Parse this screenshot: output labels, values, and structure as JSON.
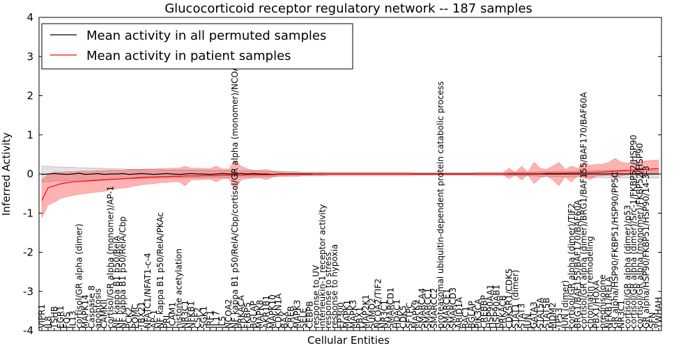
{
  "chart_data": {
    "type": "line",
    "title": "Glucocorticoid receptor regulatory network -- 187 samples",
    "xlabel": "Cellular Entities",
    "ylabel": "Inferred Activity",
    "ylim": [
      -4,
      4
    ],
    "yticks": [
      -4,
      -3,
      -2,
      -1,
      0,
      1,
      2,
      3,
      4
    ],
    "grid": false,
    "legend": {
      "location": "top-left",
      "entries": [
        {
          "label": "Mean activity in all permuted samples",
          "color": "#000000"
        },
        {
          "label": "Mean activity in patient samples",
          "color": "#ff0000"
        }
      ]
    },
    "categories": [
      "VIPR1",
      "IL8",
      "TSHB",
      "EGR1",
      "FOS",
      "IL13",
      "cortisol/GR alpha (dimer)",
      "MAPK14",
      "Caspase 8",
      "apoptosis",
      "CAMKII",
      "cortisol/GR alpha (monomer)/AP-1",
      "NF kappa B1 p50/RelA",
      "NF kappa B1 p50/RelA/Cbp",
      "PCK2",
      "POMC",
      "TBX21",
      "NFATC1/NFAT1-c-4",
      "AP-1",
      "NF kappa B1 p50/RelA/PKAc",
      "PRL",
      "ICAM1",
      "histone acetylation",
      "NR3C1",
      "NFKB1",
      "CSF2",
      "SGK1",
      "IRF1",
      "IL17",
      "IL5",
      "NCOA2",
      "NF kappa B1 p50/RelA/Cbp/cortisol/GR alpha (monomer)/NCOA2",
      "PRKACA",
      "FKBP5",
      "BGLAP",
      "MAPK8",
      "AKR1B1",
      "MAPK10",
      "CDKN1A",
      "BAX",
      "CREB",
      "MAPK3",
      "SELE",
      "CEBPB",
      "response to UV",
      "interleukin-1 receptor activity",
      "response to stress",
      "response to hypoxia",
      "EP300",
      "MAPK1",
      "MAPK3",
      "PBX1",
      "MAP2K1",
      "SUMO2",
      "NCOA2/TIF2",
      "NR3C1",
      "SMARCD1",
      "HDAC1",
      "CDK5",
      "SFTPC",
      "MAPK9",
      "SMARCA4",
      "SMARCC1",
      "SMARCC2",
      "proteasomal ubiquitin-dependent protein catabolic process",
      "SMARCE1",
      "SMARCD3",
      "ARID1A",
      "RAC1",
      "BGLAP",
      "PIK3CA",
      "CREBBP",
      "HSP90AA1",
      "HSP90AB1",
      "PRKACB",
      "CDK5R1/CDK5",
      "STAT1 (dimer)",
      "STAT3",
      "JUN",
      "GATA3",
      "STAT5A",
      "STAT5B",
      "MDM2",
      "TP53",
      "JUN (dimer)",
      "cortisol/GR alpha (dimer)/TIF2",
      "BRG1/BAF155/BAF170/BAF60A",
      "cortisol/GR alpha (dimer)/BRG1/BAF155/BAF170/BAF60A",
      "chromatin remodeling",
      "PBX1/HOXA",
      "prednisolone",
      "NFKB1/RELA",
      "GR alpha/HSP90/FKBP51/HSP90/PP5C",
      "NR3C1",
      "cortisol/GR alpha (dimer)/p53",
      "cortisol/GR alpha (dimer)/Src-1/FKBP52/HSP90",
      "cortisol/GR alpha (monomer)/FKBP52/HSP90",
      "GR alpha/HSP90/FKBP51/HSP90/14-3-3",
      "SFN",
      "YWHAH"
    ],
    "series": [
      {
        "name": "Mean activity in all permuted samples",
        "color": "#000000",
        "values": [
          -0.01,
          0.0,
          0.01,
          0.0,
          -0.01,
          0.0,
          0.02,
          -0.01,
          0.0,
          0.01,
          -0.01,
          0.0,
          0.0,
          0.01,
          -0.01,
          0.0,
          0.01,
          0.0,
          -0.01,
          0.0,
          0.01,
          0.0,
          -0.01,
          0.0,
          0.01,
          0.0,
          0.0,
          -0.01,
          0.0,
          0.01,
          0.0,
          0.0,
          0.01,
          0.0,
          0.01,
          0.0,
          0.0,
          -0.01,
          0.0,
          0.0,
          0.0,
          0.0,
          0.0,
          0.0,
          0.0,
          0.0,
          0.0,
          0.0,
          0.0,
          0.0,
          0.0,
          0.0,
          0.0,
          0.0,
          0.0,
          0.0,
          0.0,
          0.0,
          0.0,
          0.0,
          0.0,
          0.0,
          0.0,
          0.0,
          0.0,
          0.0,
          0.0,
          0.0,
          0.0,
          0.0,
          0.0,
          0.0,
          0.0,
          0.0,
          0.0,
          0.0,
          0.0,
          0.0,
          0.0,
          0.0,
          0.0,
          0.0,
          0.0,
          0.0,
          0.0,
          0.0,
          0.0,
          0.0,
          0.0,
          0.0,
          0.0,
          0.0,
          0.01,
          0.0,
          0.0,
          0.0,
          0.01,
          0.0,
          0.0,
          0.0
        ],
        "lower": [
          -0.2,
          -0.2,
          -0.18,
          -0.18,
          -0.17,
          -0.17,
          -0.16,
          -0.16,
          -0.15,
          -0.15,
          -0.14,
          -0.14,
          -0.13,
          -0.13,
          -0.12,
          -0.12,
          -0.12,
          -0.11,
          -0.11,
          -0.11,
          -0.1,
          -0.1,
          -0.1,
          -0.1,
          -0.1,
          -0.1,
          -0.09,
          -0.09,
          -0.09,
          -0.09,
          -0.09,
          -0.08,
          -0.08,
          -0.08,
          -0.08,
          -0.07,
          -0.07,
          -0.07,
          -0.07,
          -0.06,
          -0.06,
          -0.06,
          -0.05,
          -0.05,
          -0.05,
          -0.05,
          -0.04,
          -0.04,
          -0.04,
          -0.04,
          -0.04,
          -0.04,
          -0.04,
          -0.04,
          -0.04,
          -0.04,
          -0.04,
          -0.04,
          -0.04,
          -0.04,
          -0.03,
          -0.03,
          -0.03,
          -0.03,
          -0.03,
          -0.03,
          -0.03,
          -0.03,
          -0.03,
          -0.03,
          -0.04,
          -0.04,
          -0.04,
          -0.04,
          -0.04,
          -0.04,
          -0.05,
          -0.05,
          -0.05,
          -0.05,
          -0.06,
          -0.06,
          -0.06,
          -0.07,
          -0.07,
          -0.07,
          -0.08,
          -0.08,
          -0.08,
          -0.09,
          -0.09,
          -0.1,
          -0.1,
          -0.1,
          -0.1,
          -0.1,
          -0.1,
          -0.1,
          -0.1,
          -0.1
        ],
        "upper": [
          0.2,
          0.2,
          0.18,
          0.18,
          0.17,
          0.17,
          0.16,
          0.16,
          0.15,
          0.15,
          0.14,
          0.14,
          0.13,
          0.13,
          0.12,
          0.12,
          0.12,
          0.11,
          0.11,
          0.11,
          0.1,
          0.1,
          0.1,
          0.1,
          0.1,
          0.1,
          0.09,
          0.09,
          0.09,
          0.09,
          0.09,
          0.08,
          0.08,
          0.08,
          0.08,
          0.07,
          0.07,
          0.07,
          0.07,
          0.06,
          0.06,
          0.06,
          0.05,
          0.05,
          0.05,
          0.05,
          0.04,
          0.04,
          0.04,
          0.04,
          0.04,
          0.04,
          0.04,
          0.04,
          0.04,
          0.04,
          0.04,
          0.04,
          0.04,
          0.04,
          0.03,
          0.03,
          0.03,
          0.03,
          0.03,
          0.03,
          0.03,
          0.03,
          0.03,
          0.03,
          0.04,
          0.04,
          0.04,
          0.04,
          0.04,
          0.04,
          0.05,
          0.05,
          0.05,
          0.05,
          0.06,
          0.06,
          0.06,
          0.07,
          0.07,
          0.07,
          0.08,
          0.08,
          0.08,
          0.09,
          0.09,
          0.1,
          0.1,
          0.1,
          0.1,
          0.1,
          0.1,
          0.1,
          0.1,
          0.1
        ]
      },
      {
        "name": "Mean activity in patient samples",
        "color": "#ff0000",
        "values": [
          -0.68,
          -0.35,
          -0.3,
          -0.25,
          -0.22,
          -0.2,
          -0.19,
          -0.18,
          -0.17,
          -0.16,
          -0.15,
          -0.14,
          -0.13,
          -0.12,
          -0.11,
          -0.1,
          -0.09,
          -0.08,
          -0.08,
          -0.07,
          -0.07,
          -0.06,
          -0.06,
          -0.05,
          -0.05,
          -0.05,
          -0.04,
          -0.04,
          -0.04,
          -0.03,
          -0.03,
          -0.03,
          -0.03,
          -0.02,
          -0.02,
          -0.02,
          -0.02,
          -0.02,
          -0.01,
          -0.01,
          -0.01,
          -0.01,
          -0.01,
          -0.01,
          0.0,
          0.0,
          0.0,
          0.0,
          0.0,
          0.0,
          0.0,
          0.0,
          0.0,
          0.0,
          0.0,
          0.0,
          0.0,
          0.0,
          0.0,
          0.0,
          0.0,
          0.0,
          0.0,
          0.0,
          0.0,
          0.0,
          0.0,
          0.0,
          0.0,
          0.0,
          0.0,
          0.0,
          0.0,
          0.0,
          0.0,
          0.01,
          0.01,
          0.01,
          0.01,
          0.01,
          0.01,
          0.02,
          0.02,
          0.02,
          0.02,
          0.03,
          0.03,
          0.03,
          0.04,
          0.04,
          0.05,
          0.06,
          0.07,
          0.08,
          0.09,
          0.1,
          0.11,
          0.12,
          0.13,
          0.14
        ],
        "lower": [
          -1.12,
          -0.8,
          -0.72,
          -0.63,
          -0.58,
          -0.55,
          -0.52,
          -0.5,
          -0.48,
          -0.46,
          -0.45,
          -0.4,
          -0.38,
          -0.36,
          -0.34,
          -0.3,
          -0.28,
          -0.26,
          -0.25,
          -0.22,
          -0.22,
          -0.2,
          -0.2,
          -0.3,
          -0.15,
          -0.15,
          -0.14,
          -0.14,
          -0.2,
          -0.12,
          -0.12,
          -0.4,
          -0.15,
          -0.12,
          -0.1,
          -0.1,
          -0.15,
          -0.08,
          -0.05,
          -0.05,
          -0.04,
          -0.04,
          -0.03,
          -0.03,
          -0.03,
          -0.03,
          -0.02,
          -0.02,
          -0.02,
          -0.02,
          -0.02,
          -0.02,
          -0.02,
          -0.02,
          -0.02,
          -0.02,
          -0.02,
          -0.02,
          -0.02,
          -0.02,
          -0.02,
          -0.02,
          -0.02,
          -0.02,
          -0.02,
          -0.02,
          -0.02,
          -0.02,
          -0.02,
          -0.02,
          -0.02,
          -0.02,
          -0.02,
          -0.02,
          -0.02,
          -0.12,
          -0.02,
          -0.15,
          -0.02,
          -0.25,
          -0.1,
          -0.05,
          -0.15,
          -0.3,
          -0.08,
          -0.2,
          -0.05,
          -0.1,
          -0.15,
          -0.05,
          -0.05,
          -0.03,
          -0.1,
          -0.05,
          -0.02,
          -0.03,
          -0.02,
          -0.02,
          -0.01,
          0.0
        ],
        "upper": [
          -0.15,
          0.0,
          0.05,
          0.05,
          0.06,
          0.06,
          0.07,
          0.08,
          0.08,
          0.09,
          0.09,
          0.1,
          0.1,
          0.1,
          0.12,
          0.12,
          0.12,
          0.13,
          0.13,
          0.14,
          0.14,
          0.15,
          0.15,
          0.2,
          0.15,
          0.15,
          0.14,
          0.14,
          0.2,
          0.13,
          0.13,
          0.35,
          0.2,
          0.13,
          0.1,
          0.1,
          0.12,
          0.08,
          0.06,
          0.05,
          0.04,
          0.04,
          0.03,
          0.03,
          0.03,
          0.03,
          0.03,
          0.03,
          0.03,
          0.03,
          0.03,
          0.03,
          0.03,
          0.03,
          0.03,
          0.03,
          0.03,
          0.03,
          0.03,
          0.03,
          0.03,
          0.03,
          0.03,
          0.03,
          0.03,
          0.03,
          0.03,
          0.03,
          0.03,
          0.03,
          0.03,
          0.03,
          0.03,
          0.03,
          0.03,
          0.15,
          0.04,
          0.2,
          0.05,
          0.3,
          0.15,
          0.12,
          0.2,
          0.3,
          0.12,
          0.2,
          0.15,
          0.3,
          0.22,
          0.25,
          0.25,
          0.3,
          0.4,
          0.3,
          0.28,
          0.3,
          0.32,
          0.34,
          0.35,
          0.36
        ]
      }
    ]
  }
}
